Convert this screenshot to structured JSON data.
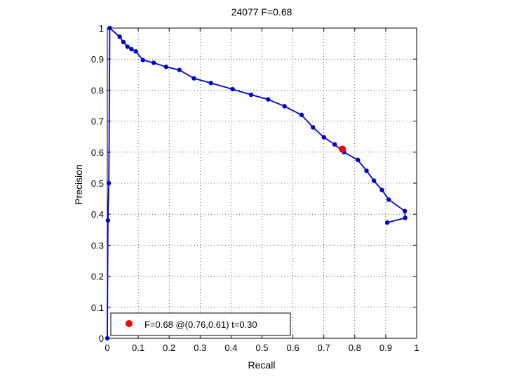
{
  "chart_data": {
    "type": "line",
    "title": "24077 F=0.68",
    "xlabel": "Recall",
    "ylabel": "Precision",
    "xlim": [
      0,
      1
    ],
    "ylim": [
      0,
      1
    ],
    "xticks": [
      "0",
      "0.1",
      "0.2",
      "0.3",
      "0.4",
      "0.5",
      "0.6",
      "0.7",
      "0.8",
      "0.9",
      "1"
    ],
    "yticks": [
      "0",
      "0.1",
      "0.2",
      "0.3",
      "0.4",
      "0.5",
      "0.6",
      "0.7",
      "0.8",
      "0.9",
      "1"
    ],
    "grid": true,
    "series_color": "#0000cc",
    "marker_color": "#0000cc",
    "highlight_color": "#ff0000",
    "series": [
      {
        "x": [
          0.0,
          0.002,
          0.005,
          0.008,
          0.04,
          0.052,
          0.065,
          0.078,
          0.092,
          0.115,
          0.15,
          0.19,
          0.233,
          0.28,
          0.335,
          0.405,
          0.465,
          0.52,
          0.573,
          0.628,
          0.665,
          0.7,
          0.735,
          0.765,
          0.81,
          0.838,
          0.862,
          0.888,
          0.91,
          0.962,
          0.963,
          0.905
        ],
        "y": [
          0.0,
          0.38,
          0.5,
          1.0,
          0.972,
          0.955,
          0.94,
          0.932,
          0.925,
          0.897,
          0.888,
          0.875,
          0.865,
          0.838,
          0.823,
          0.803,
          0.785,
          0.77,
          0.748,
          0.72,
          0.68,
          0.648,
          0.625,
          0.6,
          0.575,
          0.54,
          0.508,
          0.478,
          0.447,
          0.41,
          0.388,
          0.373
        ]
      }
    ],
    "highlight_point": {
      "x": 0.76,
      "y": 0.61
    },
    "legend": {
      "position": "bottom-left",
      "label": "F=0.68 @(0.76,0.61) t=0.30"
    }
  }
}
